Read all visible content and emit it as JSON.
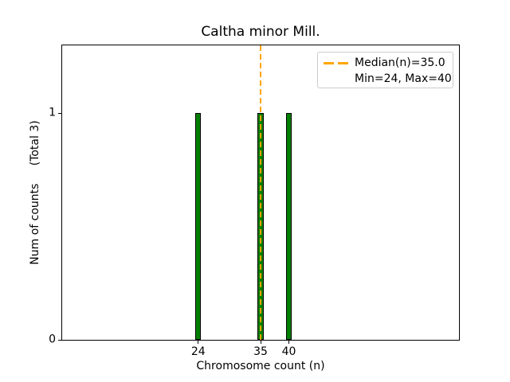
{
  "chart_data": {
    "type": "bar",
    "title": "Caltha minor Mill.",
    "xlabel": "Chromosome count (n)",
    "ylabel": "Num of counts     (Total 3)",
    "x": [
      24,
      35,
      40
    ],
    "values": [
      1,
      1,
      1
    ],
    "bar_width": 1,
    "xlim": [
      0,
      70
    ],
    "ylim": [
      0,
      1.3
    ],
    "xticks": [
      24,
      35,
      40
    ],
    "yticks": [
      0,
      1
    ],
    "total": 3,
    "median": 35.0,
    "min": 24,
    "max": 40,
    "grid": false,
    "colors": {
      "bar_fill": "#008000",
      "bar_edge": "#000000",
      "median_line": "#ffa500",
      "axis": "#000000",
      "legend_border": "#cccccc",
      "text": "#000000"
    },
    "legend": {
      "position": "upper right",
      "entries": [
        {
          "label": "Median(n)=35.0",
          "marker": "orange-dashed-line"
        },
        {
          "label": "Min=24, Max=40",
          "marker": "none"
        }
      ]
    }
  }
}
